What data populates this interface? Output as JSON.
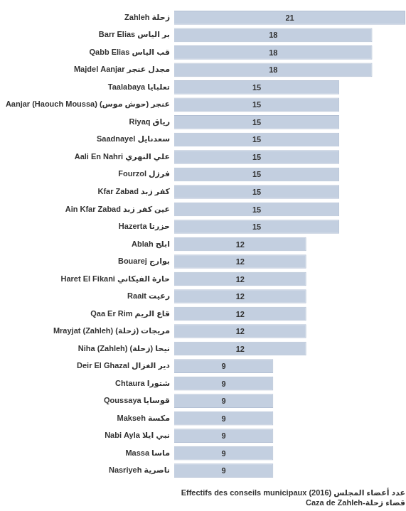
{
  "chart_data": {
    "type": "bar",
    "orientation": "horizontal",
    "title": [
      "Effectifs des conseils municipaux (2016) عدد أعضاء المجلس",
      "Caza de Zahleh-قضاء زحلة"
    ],
    "categories": [
      "Zahleh زحلة",
      "Barr Elias بر الياس",
      "Qabb Elias قب الياس",
      "Majdel Aanjar مجدل عنجر",
      "Taalabaya تعلبايا",
      "Aanjar (Haouch Moussa) عنجر (حوش موس)",
      "Riyaq رياق",
      "Saadnayel سعدنايل",
      "Aali En Nahri علي النهري",
      "Fourzol فرزل",
      "Kfar Zabad كفر زبد",
      "Ain Kfar Zabad عين كفر زبد",
      "Hazerta حزرتا",
      "Ablah ابلح",
      "Bouarej بوارج",
      "Haret El Fikani حارة الفيكاني",
      "Raait رعيت",
      "Qaa Er Rim قاع الريم",
      "Mrayjat (Zahleh) مريجات (زحلة)",
      "Niha (Zahleh) نيحا (زحلة)",
      "Deir El Ghazal دير الغزال",
      "Chtaura شتورا",
      "Qoussaya قوسايا",
      "Makseh مكسة",
      "Nabi Ayla نبي ايلا",
      "Massa ماسا",
      "Nasriyeh ناصرية"
    ],
    "values": [
      21,
      18,
      18,
      18,
      15,
      15,
      15,
      15,
      15,
      15,
      15,
      15,
      15,
      12,
      12,
      12,
      12,
      12,
      12,
      12,
      9,
      9,
      9,
      9,
      9,
      9,
      9
    ],
    "color": "#c3cfe0",
    "xlim": [
      0,
      21
    ],
    "data_labels": true,
    "tick_labels": "y",
    "grid": false
  }
}
